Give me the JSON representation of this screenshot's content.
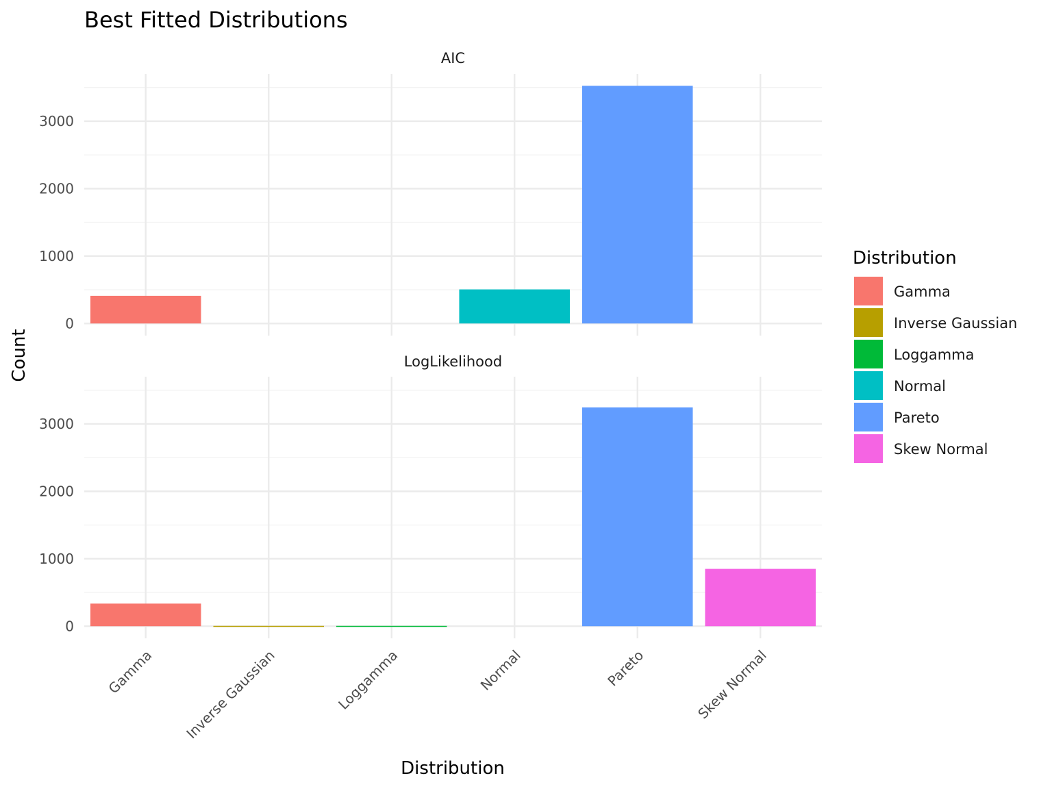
{
  "chart_data": {
    "type": "bar",
    "title": "Best Fitted Distributions",
    "xlabel": "Distribution",
    "ylabel": "Count",
    "categories": [
      "Gamma",
      "Inverse Gaussian",
      "Loggamma",
      "Normal",
      "Pareto",
      "Skew Normal"
    ],
    "ylim": [
      -180,
      3700
    ],
    "yticks": [
      0,
      1000,
      2000,
      3000
    ],
    "ytick_labels": [
      "0",
      "1000",
      "2000",
      "3000"
    ],
    "grid": true,
    "legend": {
      "title": "Distribution",
      "placement": "right",
      "entries": [
        {
          "label": "Gamma",
          "color": "#F8766D"
        },
        {
          "label": "Inverse Gaussian",
          "color": "#B79F00"
        },
        {
          "label": "Loggamma",
          "color": "#00BA38"
        },
        {
          "label": "Normal",
          "color": "#00BFC4"
        },
        {
          "label": "Pareto",
          "color": "#619CFF"
        },
        {
          "label": "Skew Normal",
          "color": "#F564E3"
        }
      ]
    },
    "panels": [
      {
        "name": "AIC",
        "values": [
          410,
          0,
          0,
          505,
          3525,
          0
        ]
      },
      {
        "name": "LogLikelihood",
        "values": [
          335,
          5,
          5,
          0,
          3245,
          850
        ]
      }
    ]
  }
}
